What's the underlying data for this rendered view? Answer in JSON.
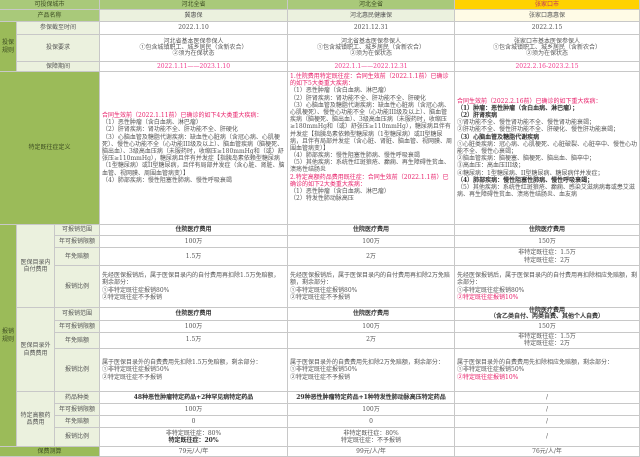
{
  "header": {
    "label": "可投保城市",
    "cities": [
      "河北全省",
      "河北全省",
      "张家口市"
    ]
  },
  "product": {
    "label": "产品名称",
    "names": [
      "冀惠保",
      "河北惠民健康保",
      "张家口惠惠保"
    ]
  },
  "rules": {
    "group": "投保规则",
    "deadline": {
      "label": "参保截至时间",
      "values": [
        "2022.1.10",
        "2021.12.31",
        "2022.2.15"
      ]
    },
    "requirement": {
      "label": "投保要求",
      "values": [
        [
          "河北省基本医保参保人",
          "①包含城镇职工、城乡居民（含新农合）",
          "②须为在保状态"
        ],
        [
          "河北省基本医保参保人",
          "①包含城镇职工、城乡居民（含新农合）",
          "②须为在保状态"
        ],
        [
          "张家口市基本医保参保人",
          "①包含城镇职工、城乡居民（含新农合）",
          "②须为在保状态"
        ]
      ]
    },
    "period": {
      "label": "保障期间",
      "values": [
        "2022.1.11——2023.1.10",
        "2022.1.1——2022.12.31",
        "2022.2.16-2023.2.15"
      ]
    }
  },
  "preexisting": {
    "label": "特定既往症定义",
    "columns": [
      [
        {
          "t": "合同生效前（2022.1.11前）已确诊的如下4大类重大疾病：",
          "c": "red"
        },
        {
          "t": "（1）恶性肿瘤（含白血病、淋巴瘤）"
        },
        {
          "t": "（2）肝肾疾病：肾功能不全、肝功能不全、肝硬化"
        },
        {
          "t": "（3）心脑血管及糖脂代谢疾病：缺血性心脏病（含冠心病、心肌梗死）、慢性心功能不全（心功能III级及以上）、脑血管疾病（脑梗死、脑出血）、3级高血压病（未服药时，收缩压≥180mmHg和（或）舒张压≥110mmHg），糖尿病且伴有并发症【指胰岛素依赖型糖尿病（1型糖尿病）或II型糖尿病，且伴有局部并发症（含心脏、肾脏、脑血管、视网膜、周围血管病变）】"
        },
        {
          "t": "（4）肺部疾病：慢性阻塞性肺病、慢性呼吸衰竭"
        }
      ],
      [
        {
          "t": "1.住院费用特定既往症：合同生效前（2022.1.1前）已确诊的如下5大类重大疾病：",
          "c": "red"
        },
        {
          "t": "（1）恶性肿瘤（含白血病、淋巴瘤）"
        },
        {
          "t": "（2）肝肾疾病：肾功能不全、肝功能不全、肝硬化"
        },
        {
          "t": "（3）心脑血管及糖脂代谢疾病：缺血性心脏病（含冠心病、心肌梗死）、慢性心功能不全（心功能III级及以上）、脑血管疾病（脑梗死、脑出血）、3级高血压病（未服药时，收缩压≥180mmHg和（或）舒张压≥110mmHg），糖尿病且伴有并发症【指胰岛素依赖型糖尿病（1型糖尿病）或II型糖尿病，且伴有局部并发症（含心脏、肾脏、脑血管、视网膜、周围血管病变）】"
        },
        {
          "t": "（4）肺部疾病：慢性阻塞性肺病、慢性呼吸衰竭"
        },
        {
          "t": "（5）其他疾病：系统性红斑狼疮、癫痫、再生障碍性贫血、溃疡性结肠炎"
        },
        {
          "t": "2.特定高额药品费用既往症：合同生效前（2022.1.1前）已确诊的如下2大类重大疾病：",
          "c": "red"
        },
        {
          "t": "（1）恶性肿瘤（含白血病、淋巴瘤）"
        },
        {
          "t": "（2）特发性肺动脉高压"
        }
      ],
      [
        {
          "t": "合同生效前（2022.2.16前）已确诊的如下重大疾病：",
          "c": "red"
        },
        {
          "t": "（1）肿瘤：恶性肿瘤（含白血病、淋巴瘤）；",
          "c": "b"
        },
        {
          "t": "（2）肝肾疾病",
          "c": "b"
        },
        {
          "t": "①肾功能不全、慢性肾功能不全、慢性肾功能衰竭；"
        },
        {
          "t": "②肝功能不全、慢性肝功能不全、肝硬化、慢性肝功能衰竭；"
        },
        {
          "t": "（3）心脑血管及糖脂代谢疾病",
          "c": "b"
        },
        {
          "t": "①心脏类疾病：冠心病、心肌梗死、心脏破裂、心脏卒中、慢性心功能不全、慢性心衰竭；"
        },
        {
          "t": "②脑血管疾病：脑梗塞、脑梗死、脑出血、脑卒中；"
        },
        {
          "t": "③高血压：高血压III级；"
        },
        {
          "t": "④糖尿病：1型糖尿病、II型糖尿病、糖尿病伴并发症；"
        },
        {
          "t": "（4）肺部疾病：慢性阻塞性肺病、慢性呼吸衰竭；",
          "c": "b"
        },
        {
          "t": "（5）其他疾病：系统性红斑狼疮、癫痫、感染艾滋病病毒或患艾滋病、再生障碍性贫血、溃疡性结肠炎、血友病"
        }
      ]
    ]
  },
  "claims": {
    "group": "报销规则",
    "labels": {
      "scope": "可报销范围",
      "limit": "年可报销限额",
      "deductible": "年免赔额",
      "ratio": "报销比例",
      "drugs": "药品种类"
    },
    "in_catalog": {
      "label": "医保目录内自付费用",
      "scope": [
        "住院医疗费用",
        "住院医疗费用",
        "住院医疗费用"
      ],
      "limit": [
        "100万",
        "100万",
        "150万"
      ],
      "deductible": [
        [
          "1.5万"
        ],
        [
          "2万"
        ],
        [
          "非特定既往症：1.5万",
          "特定既往症：2万"
        ]
      ],
      "ratio": [
        [
          {
            "t": "先经医保报销后，属于医保目录内的自付费用再扣除1.5万免赔额，剩余部分："
          },
          {
            "t": "①非特定既往症报销80%"
          },
          {
            "t": "②特定既往症不予报销"
          }
        ],
        [
          {
            "t": "先经医保报销后，属于医保目录内的自付费用再扣除2万免赔额，剩余部分："
          },
          {
            "t": "①非特定既往症报销80%"
          },
          {
            "t": "②特定既往症不予报销"
          }
        ],
        [
          {
            "t": "先经医保报销后，属于医保目录内的自付费用再扣除相应免赔额，剩余部分："
          },
          {
            "t": "①非特定既往症报销80%"
          },
          {
            "t": "②特定既往症报销10%",
            "c": "red"
          }
        ]
      ]
    },
    "out_catalog": {
      "label": "医保目录外自费费用",
      "scope": [
        [
          "住院医疗费用"
        ],
        [
          "住院医疗费用"
        ],
        [
          "住院医疗费用",
          "（含乙类自付、丙类自费、其他个人自费）"
        ]
      ],
      "limit": [
        "100万",
        "100万",
        "150万"
      ],
      "deductible": [
        [
          "1.5万"
        ],
        [
          "2万"
        ],
        [
          "非特定既往症：1.5万",
          "特定既往症：2万"
        ]
      ],
      "ratio": [
        [
          {
            "t": "属于医保目录外的自费费用先扣除1.5万免赔额，剩余部分："
          },
          {
            "t": "①非特定既往症报销50%"
          },
          {
            "t": "②特定既往症不予报销"
          }
        ],
        [
          {
            "t": "属于医保目录外的自费费用先扣除2万免赔额，剩余部分："
          },
          {
            "t": "①非特定既往症报销50%"
          },
          {
            "t": "②特定既往症不予报销"
          }
        ],
        [
          {
            "t": "属于医保目录外的自费费用先扣除相应免赔额，剩余部分："
          },
          {
            "t": "①非特定既往症报销50%"
          },
          {
            "t": "②特定既往症报销10%",
            "c": "red"
          }
        ]
      ]
    },
    "drugs": {
      "label": "特定高额药品费用",
      "types": [
        "48种恶性肿瘤特定药品+2种罕见病特定药品",
        "29种恶性肿瘤特定药品+1种特发性肺动脉高压特定药品",
        "/"
      ],
      "limit": [
        "100万",
        "100万",
        "/"
      ],
      "deductible": [
        "0",
        "0",
        "/"
      ],
      "ratio": [
        [
          {
            "t": "非特定既往症：80%"
          },
          {
            "t": "特定既往症：20%",
            "c": "red b"
          }
        ],
        [
          {
            "t": "非特定既往症：80%"
          },
          {
            "t": "特定既往症：不予报销"
          }
        ],
        [
          {
            "t": "/"
          }
        ]
      ]
    }
  },
  "premium": {
    "label": "保费测算",
    "values": [
      "79元/人/年",
      "99元/人/年",
      "76元/人/年"
    ]
  },
  "colors": {
    "label_green": "#9bbb59",
    "light_green": "#ebf1de",
    "header_yellow": "#ffd200",
    "date_pink": "#f0388c",
    "highlight_red": "#e8206a"
  }
}
